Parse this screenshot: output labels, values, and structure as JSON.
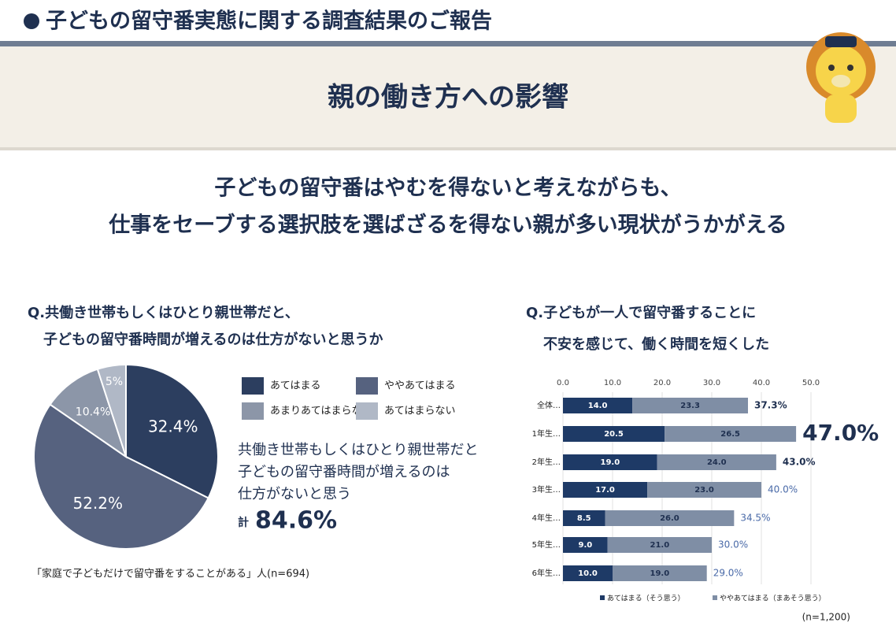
{
  "header": {
    "title": "子どもの留守番実態に関する調査結果のご報告",
    "section": "親の働き方への影響"
  },
  "headline": [
    "子どもの留守番はやむを得ないと考えながらも、",
    "仕事をセーブする選択肢を選ばざるを得ない親が多い現状がうかがえる"
  ],
  "chart_data": [
    {
      "type": "pie",
      "title": [
        "Q.共働き世帯もしくはひとり親世帯だと、",
        "子どもの留守番時間が増えるのは仕方がないと思うか"
      ],
      "categories": [
        "あてはまる",
        "ややあてはまる",
        "あまりあてはまらな",
        "あてはまらない"
      ],
      "values": [
        32.4,
        52.2,
        10.4,
        5
      ],
      "value_labels": [
        "32.4%",
        "52.2%",
        "10.4%",
        "5%"
      ],
      "colors": [
        "#2c3e5f",
        "#56627f",
        "#8c96a8",
        "#b0b8c6"
      ],
      "annotation": [
        "共働き世帯もしくはひとり親世帯だと",
        "子どもの留守番時間が増えるのは",
        "仕方がないと思う"
      ],
      "total_prefix": "計",
      "total": 84.6,
      "total_label": "84.6%",
      "note": "「家庭で子どもだけで留守番をすることがある」人(n=694)"
    },
    {
      "type": "stacked-barh",
      "title": [
        "Q.子どもが一人で留守番することに",
        "不安を感じて、働く時間を短くした"
      ],
      "categories": [
        "全体…",
        "1年生…",
        "2年生…",
        "3年生…",
        "4年生…",
        "5年生…",
        "6年生…"
      ],
      "xlim": [
        0,
        50
      ],
      "xticks": [
        {
          "value": 0,
          "label": "0.0"
        },
        {
          "value": 10,
          "label": "10.0"
        },
        {
          "value": 20,
          "label": "20.0"
        },
        {
          "value": 30,
          "label": "30.0"
        },
        {
          "value": 40,
          "label": "40.0"
        },
        {
          "value": 50,
          "label": "50.0"
        }
      ],
      "grid": true,
      "series": [
        {
          "name": "あてはまる（そう思う）",
          "color": "#1e3a66",
          "values": [
            14.0,
            20.5,
            19.0,
            17.0,
            8.5,
            9.0,
            10.0
          ],
          "value_labels": [
            "14.0",
            "20.5",
            "19.0",
            "17.0",
            "8.5",
            "9.0",
            "10.0"
          ]
        },
        {
          "name": "ややあてはまる（まあそう思う）",
          "color": "#7f8ea5",
          "values": [
            23.3,
            26.5,
            24.0,
            23.0,
            26.0,
            21.0,
            19.0
          ],
          "value_labels": [
            "23.3",
            "26.5",
            "24.0",
            "23.0",
            "26.0",
            "21.0",
            "19.0"
          ]
        }
      ],
      "totals": [
        37.3,
        47.0,
        43.0,
        40.0,
        34.5,
        30.0,
        29.0
      ],
      "total_labels": [
        "37.3%",
        "47.0%",
        "43.0%",
        "40.0%",
        "34.5%",
        "30.0%",
        "29.0%"
      ],
      "note": "(n=1,200)"
    }
  ]
}
